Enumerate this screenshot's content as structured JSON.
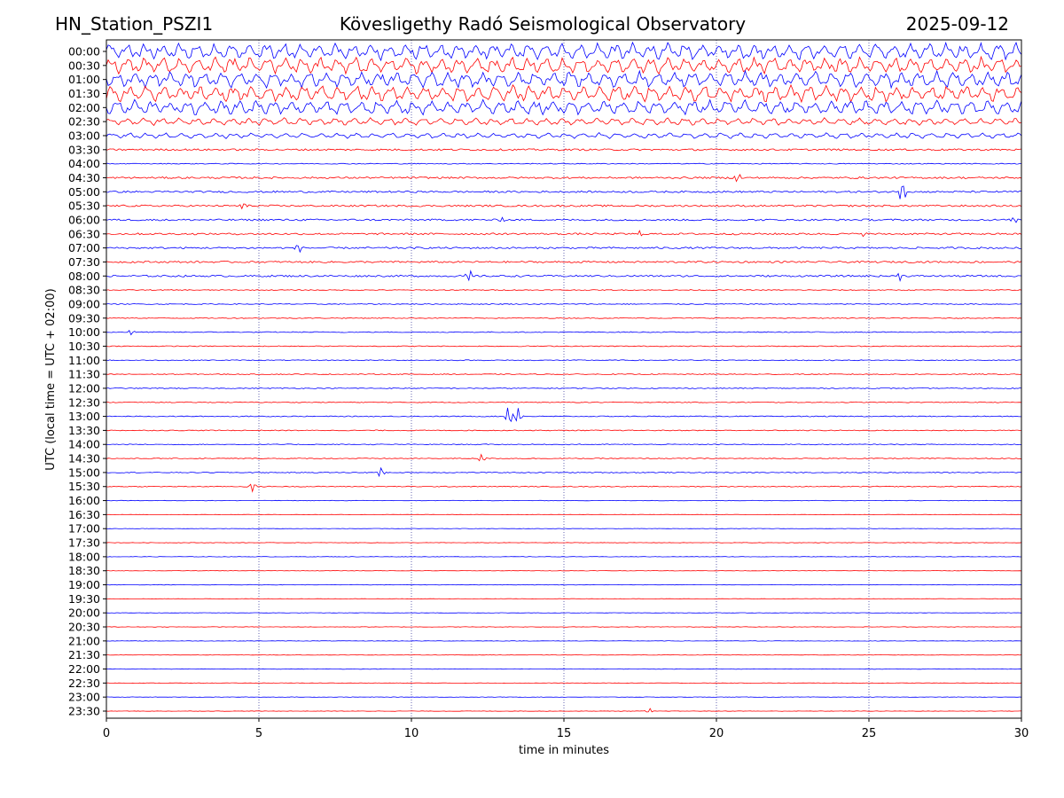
{
  "header": {
    "station": "HN_Station_PSZI1",
    "observatory": "Kövesligethy Radó Seismological Observatory",
    "date": "2025-09-12"
  },
  "chart_data": {
    "type": "line",
    "title": "Kövesligethy Radó Seismological Observatory",
    "xlabel": "time in minutes",
    "ylabel": "UTC (local time = UTC + 02:00)",
    "xlim": [
      0,
      30
    ],
    "xticks": [
      0,
      5,
      10,
      15,
      20,
      25,
      30
    ],
    "grid": "vertical dotted lines at 5-minute ticks",
    "colors": {
      "even_rows": "#0000ff",
      "odd_rows": "#ff0000"
    },
    "rows": [
      "00:00",
      "00:30",
      "01:00",
      "01:30",
      "02:00",
      "02:30",
      "03:00",
      "03:30",
      "04:00",
      "04:30",
      "05:00",
      "05:30",
      "06:00",
      "06:30",
      "07:00",
      "07:30",
      "08:00",
      "08:30",
      "09:00",
      "09:30",
      "10:00",
      "10:30",
      "11:00",
      "11:30",
      "12:00",
      "12:30",
      "13:00",
      "13:30",
      "14:00",
      "14:30",
      "15:00",
      "15:30",
      "16:00",
      "16:30",
      "17:00",
      "17:30",
      "18:00",
      "18:30",
      "19:00",
      "19:30",
      "20:00",
      "20:30",
      "21:00",
      "21:30",
      "22:00",
      "22:30",
      "23:00",
      "23:30"
    ],
    "noise_level": [
      9,
      9,
      9,
      9,
      8,
      4,
      3,
      2,
      1,
      2,
      2,
      2,
      2,
      2,
      2,
      2,
      2,
      1,
      1,
      1,
      1,
      1,
      1,
      1,
      1,
      1,
      1,
      1,
      1,
      1,
      1,
      1,
      0.5,
      0.5,
      0.5,
      0.5,
      0.5,
      0.5,
      0.5,
      0.5,
      0.5,
      0.5,
      0.5,
      0.5,
      0.5,
      0.5,
      0.5,
      0.5
    ],
    "events": [
      {
        "row": "04:30",
        "minute": 20.7,
        "amp": 7
      },
      {
        "row": "05:00",
        "minute": 26.1,
        "amp": 14
      },
      {
        "row": "05:30",
        "minute": 4.5,
        "amp": 5
      },
      {
        "row": "06:00",
        "minute": 13.0,
        "amp": 4
      },
      {
        "row": "06:00",
        "minute": 29.8,
        "amp": 4
      },
      {
        "row": "06:30",
        "minute": 17.5,
        "amp": 3
      },
      {
        "row": "06:30",
        "minute": 24.8,
        "amp": 3
      },
      {
        "row": "07:00",
        "minute": 6.3,
        "amp": 5
      },
      {
        "row": "08:00",
        "minute": 11.9,
        "amp": 7
      },
      {
        "row": "08:00",
        "minute": 26.0,
        "amp": 5
      },
      {
        "row": "10:00",
        "minute": 0.8,
        "amp": 3
      },
      {
        "row": "13:00",
        "minute": 13.2,
        "amp": 13
      },
      {
        "row": "13:00",
        "minute": 13.5,
        "amp": 10
      },
      {
        "row": "14:30",
        "minute": 12.3,
        "amp": 5
      },
      {
        "row": "15:00",
        "minute": 9.0,
        "amp": 6
      },
      {
        "row": "15:30",
        "minute": 4.8,
        "amp": 6
      },
      {
        "row": "23:30",
        "minute": 17.8,
        "amp": 3
      }
    ]
  }
}
